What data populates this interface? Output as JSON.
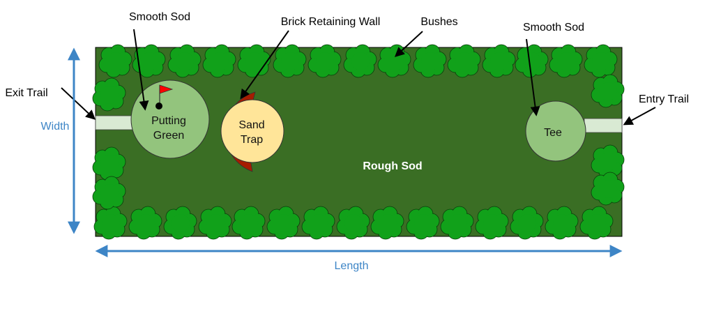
{
  "labels": {
    "smooth_sod_left": "Smooth Sod",
    "brick_wall": "Brick Retaining Wall",
    "bushes": "Bushes",
    "smooth_sod_right": "Smooth Sod",
    "exit_trail": "Exit Trail",
    "entry_trail": "Entry Trail",
    "width": "Width",
    "length": "Length",
    "rough_sod": "Rough Sod",
    "tee": "Tee",
    "putting_green_line1": "Putting",
    "putting_green_line2": "Green",
    "sand_trap_line1": "Sand",
    "sand_trap_line2": "Trap"
  },
  "colors": {
    "rough_sod": "#3a6e24",
    "smooth_sod": "#93c47d",
    "bush": "#11a11a",
    "sand": "#ffe599",
    "brick": "#a61c00",
    "trail": "#d9ead3",
    "dimension": "#3d85c6",
    "flag": "#ff0000"
  },
  "icons": {
    "flag": "flag-icon",
    "hole": "hole-icon"
  }
}
